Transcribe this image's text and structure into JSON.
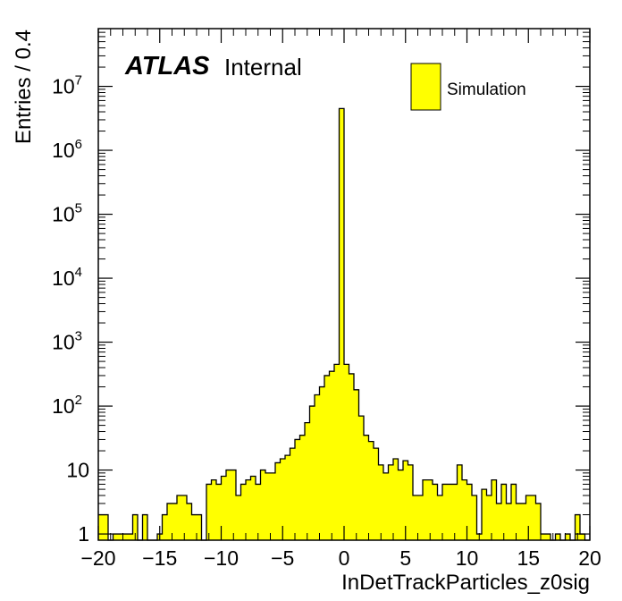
{
  "chart_data": {
    "type": "bar",
    "style": "histogram",
    "xlabel": "InDetTrackParticles_z0sig",
    "ylabel": "Entries / 0.4",
    "yscale": "log",
    "xlim": [
      -20,
      20
    ],
    "ylim": [
      0.8,
      80000000
    ],
    "bin_width": 0.4,
    "fill_color": "#ffff00",
    "edge_color": "#000000",
    "x_tick_labels": [
      "−20",
      "−15",
      "−10",
      "−5",
      "0",
      "5",
      "10",
      "15",
      "20"
    ],
    "y_tick_labels": [
      {
        "value": 1,
        "base": "1",
        "exp": ""
      },
      {
        "value": 10,
        "base": "10",
        "exp": ""
      },
      {
        "value": 100,
        "base": "10",
        "exp": "2"
      },
      {
        "value": 1000,
        "base": "10",
        "exp": "3"
      },
      {
        "value": 10000,
        "base": "10",
        "exp": "4"
      },
      {
        "value": 100000,
        "base": "10",
        "exp": "5"
      },
      {
        "value": 1000000,
        "base": "10",
        "exp": "6"
      },
      {
        "value": 10000000,
        "base": "10",
        "exp": "7"
      }
    ],
    "legend": {
      "position": "top-right",
      "entries": [
        "Simulation"
      ]
    },
    "annotation": {
      "brand": "ATLAS",
      "status": "Internal"
    },
    "bin_low_edges": [
      -20,
      -19.6,
      -19.2,
      -18.8,
      -18.4,
      -18,
      -17.6,
      -17.2,
      -16.8,
      -16.4,
      -16,
      -15.6,
      -15.2,
      -14.8,
      -14.4,
      -14,
      -13.6,
      -13.2,
      -12.8,
      -12.4,
      -12,
      -11.6,
      -11.2,
      -10.8,
      -10.4,
      -10,
      -9.6,
      -9.2,
      -8.8,
      -8.4,
      -8,
      -7.6,
      -7.2,
      -6.8,
      -6.4,
      -6,
      -5.6,
      -5.2,
      -4.8,
      -4.4,
      -4,
      -3.6,
      -3.2,
      -2.8,
      -2.4,
      -2,
      -1.6,
      -1.2,
      -0.8,
      -0.4,
      0,
      0.4,
      0.8,
      1.2,
      1.6,
      2,
      2.4,
      2.8,
      3.2,
      3.6,
      4,
      4.4,
      4.8,
      5.2,
      5.6,
      6,
      6.4,
      6.8,
      7.2,
      7.6,
      8,
      8.4,
      8.8,
      9.2,
      9.6,
      10,
      10.4,
      10.8,
      11.2,
      11.6,
      12,
      12.4,
      12.8,
      13.2,
      13.6,
      14,
      14.4,
      14.8,
      15.2,
      15.6,
      16,
      16.4,
      16.8,
      17.2,
      17.6,
      18,
      18.4,
      18.8,
      19.2,
      19.6
    ],
    "values": [
      2,
      2,
      0,
      1,
      1,
      1,
      1,
      2,
      0,
      2,
      0,
      0,
      1,
      2,
      3,
      3,
      4,
      4,
      3,
      2,
      2,
      0,
      6,
      7,
      6,
      8,
      10,
      10,
      4,
      6,
      7,
      8,
      6,
      10,
      9,
      9,
      13,
      15,
      17,
      22,
      30,
      35,
      55,
      100,
      150,
      200,
      300,
      350,
      450,
      4500000,
      450,
      320,
      180,
      70,
      35,
      28,
      22,
      12,
      9,
      12,
      15,
      10,
      14,
      12,
      4,
      4,
      7,
      7,
      6,
      4,
      6,
      6,
      6,
      12,
      7,
      6,
      4,
      1,
      5,
      4,
      7,
      3,
      6,
      3,
      6,
      3,
      3,
      4,
      4,
      3,
      1,
      1,
      0,
      1,
      0,
      1,
      0,
      2,
      1,
      0
    ]
  }
}
